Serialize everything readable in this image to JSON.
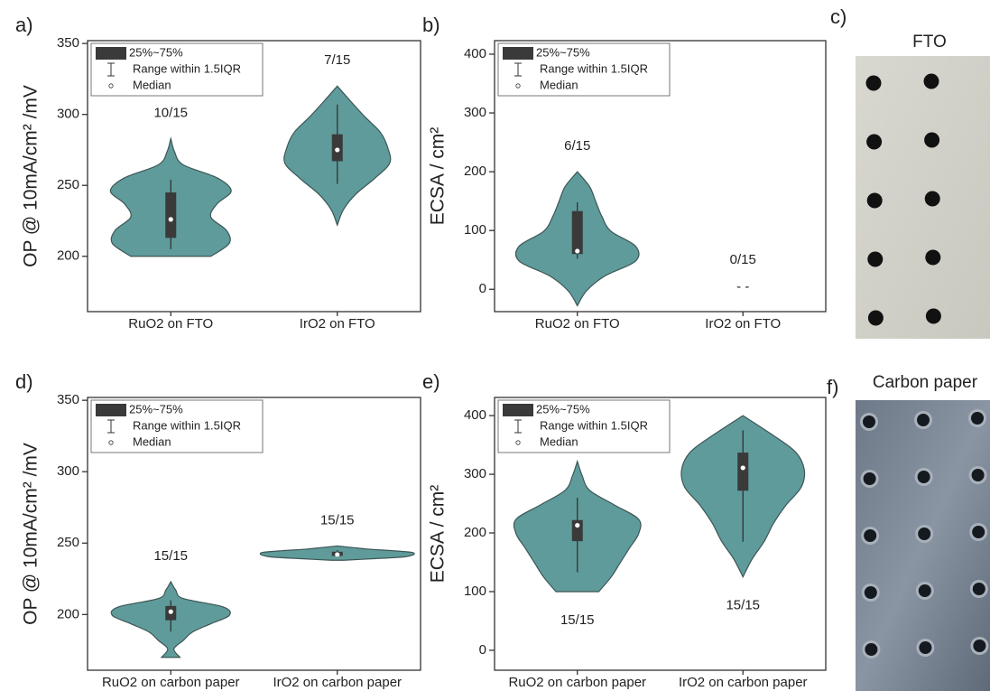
{
  "chart_data": [
    {
      "type": "violin",
      "panel": "a)",
      "ylabel": "OP @ 10mA/cm² /mV",
      "categories": [
        "RuO2 on FTO",
        "IrO2 on FTO"
      ],
      "ylim": [
        161,
        352
      ],
      "yticks": [
        200,
        250,
        300,
        350
      ],
      "legend": [
        "25%~75%",
        "Range within 1.5IQR",
        "Median"
      ],
      "color": "#5f9b9b",
      "count_label_position": "above",
      "violins": [
        {
          "min": 200,
          "max": 283,
          "density": [
            0.65,
            0.95,
            0.9,
            0.65,
            0.75,
            0.98,
            0.75,
            0.2,
            0.06,
            0
          ],
          "q1": 213,
          "q3": 245,
          "median": 226,
          "whisker_low": 205,
          "whisker_high": 254,
          "count_label": "10/15"
        },
        {
          "min": 222,
          "max": 320,
          "density": [
            0,
            0.1,
            0.3,
            0.6,
            0.85,
            0.82,
            0.7,
            0.45,
            0.22,
            0
          ],
          "q1": 267,
          "q3": 286,
          "median": 275,
          "whisker_low": 251,
          "whisker_high": 307,
          "count_label": "7/15"
        }
      ]
    },
    {
      "type": "violin",
      "panel": "b)",
      "ylabel": "ECSA / cm²",
      "categories": [
        "RuO2 on FTO",
        "IrO2 on FTO"
      ],
      "ylim": [
        -38,
        423
      ],
      "yticks": [
        0,
        100,
        200,
        300,
        400
      ],
      "legend": [
        "25%~75%",
        "Range within 1.5IQR",
        "Median"
      ],
      "color": "#5f9b9b",
      "count_label_position": "above",
      "violins": [
        {
          "min": -28,
          "max": 200,
          "density": [
            0,
            0.15,
            0.45,
            0.95,
            0.95,
            0.55,
            0.4,
            0.3,
            0.2,
            0
          ],
          "q1": 60,
          "q3": 133,
          "median": 65,
          "whisker_low": 52,
          "whisker_high": 148,
          "count_label": "6/15"
        },
        {
          "count_label": "0/15",
          "empty_label": "- -"
        }
      ]
    },
    {
      "type": "violin",
      "panel": "d)",
      "ylabel": "OP @ 10mA/cm² /mV",
      "categories": [
        "RuO2 on carbon paper",
        "IrO2 on carbon paper"
      ],
      "ylim": [
        161,
        352
      ],
      "yticks": [
        200,
        250,
        300,
        350
      ],
      "legend": [
        "25%~75%",
        "Range within 1.5IQR",
        "Median"
      ],
      "color": "#5f9b9b",
      "count_label_position": "above",
      "violins": [
        {
          "min": 170,
          "max": 223,
          "density": [
            0.15,
            0.05,
            0.2,
            0.35,
            0.65,
            0.95,
            0.85,
            0.2,
            0.08,
            0
          ],
          "q1": 196,
          "q3": 206,
          "median": 202,
          "whisker_low": 188,
          "whisker_high": 210,
          "count_label": "15/15"
        },
        {
          "min": 238,
          "max": 248,
          "density": [
            0.1,
            0.6,
            1.05,
            1.2,
            1.25,
            1.2,
            0.9,
            0.5,
            0.25,
            0
          ],
          "q1": 241,
          "q3": 244,
          "median": 242,
          "whisker_low": 240,
          "whisker_high": 245,
          "count_label": "15/15"
        }
      ]
    },
    {
      "type": "violin",
      "panel": "e)",
      "ylabel": "ECSA / cm²",
      "categories": [
        "RuO2 on carbon paper",
        "IrO2 on carbon paper"
      ],
      "ylim": [
        -34,
        431
      ],
      "yticks": [
        0,
        100,
        200,
        300,
        400
      ],
      "legend": [
        "25%~75%",
        "Range within 1.5IQR",
        "Median"
      ],
      "color": "#5f9b9b",
      "count_label_position": "below",
      "violins": [
        {
          "min": 100,
          "max": 322,
          "density": [
            0.35,
            0.55,
            0.7,
            0.85,
            1.0,
            1.0,
            0.6,
            0.2,
            0.08,
            0
          ],
          "q1": 186,
          "q3": 222,
          "median": 213,
          "whisker_low": 133,
          "whisker_high": 260,
          "count_label": "15/15"
        },
        {
          "min": 125,
          "max": 400,
          "density": [
            0,
            0.15,
            0.35,
            0.5,
            0.7,
            0.95,
            1.0,
            0.85,
            0.45,
            0
          ],
          "q1": 272,
          "q3": 337,
          "median": 311,
          "whisker_low": 185,
          "whisker_high": 375,
          "count_label": "15/15"
        }
      ]
    }
  ],
  "photos": [
    {
      "label": "c)",
      "title": "FTO"
    },
    {
      "label": "f)",
      "title": "Carbon paper"
    }
  ]
}
